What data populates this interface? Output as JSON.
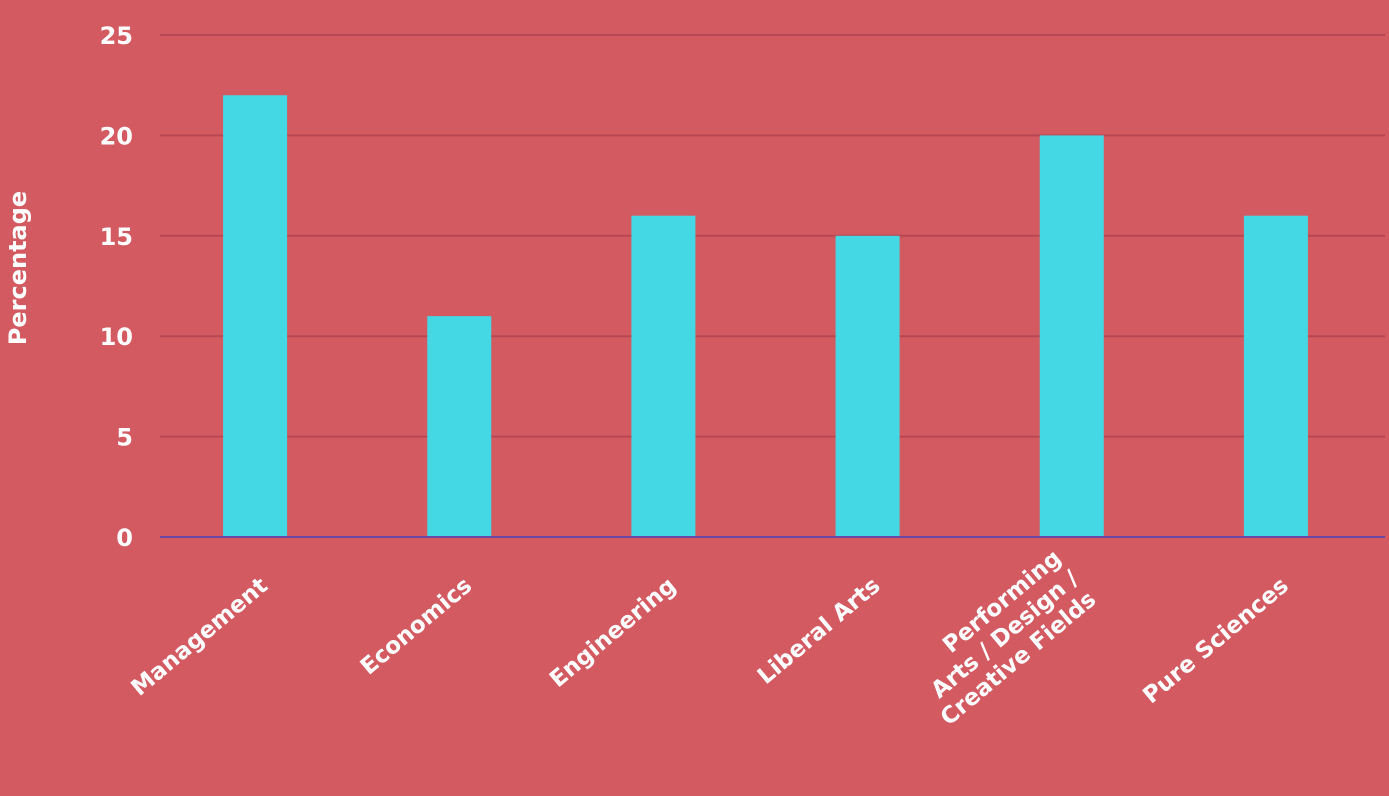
{
  "chart_data": {
    "type": "bar",
    "ylabel": "Percentage",
    "xlabel": "",
    "ylim": [
      0,
      25
    ],
    "yticks": [
      0,
      5,
      10,
      15,
      20,
      25
    ],
    "grid": true,
    "categories": [
      [
        "Management"
      ],
      [
        "Economics"
      ],
      [
        "Engineering"
      ],
      [
        "Liberal Arts"
      ],
      [
        "Performing",
        "Arts / Design /",
        "Creative Fields"
      ],
      [
        "Pure Sciences"
      ]
    ],
    "values": [
      22,
      11,
      16,
      15,
      20,
      16
    ]
  },
  "colors": {
    "background": "#d45a62",
    "bar": "#43d8e4",
    "grid": "#b74752",
    "axis": "#6a47a2",
    "text": "#ffffff"
  }
}
